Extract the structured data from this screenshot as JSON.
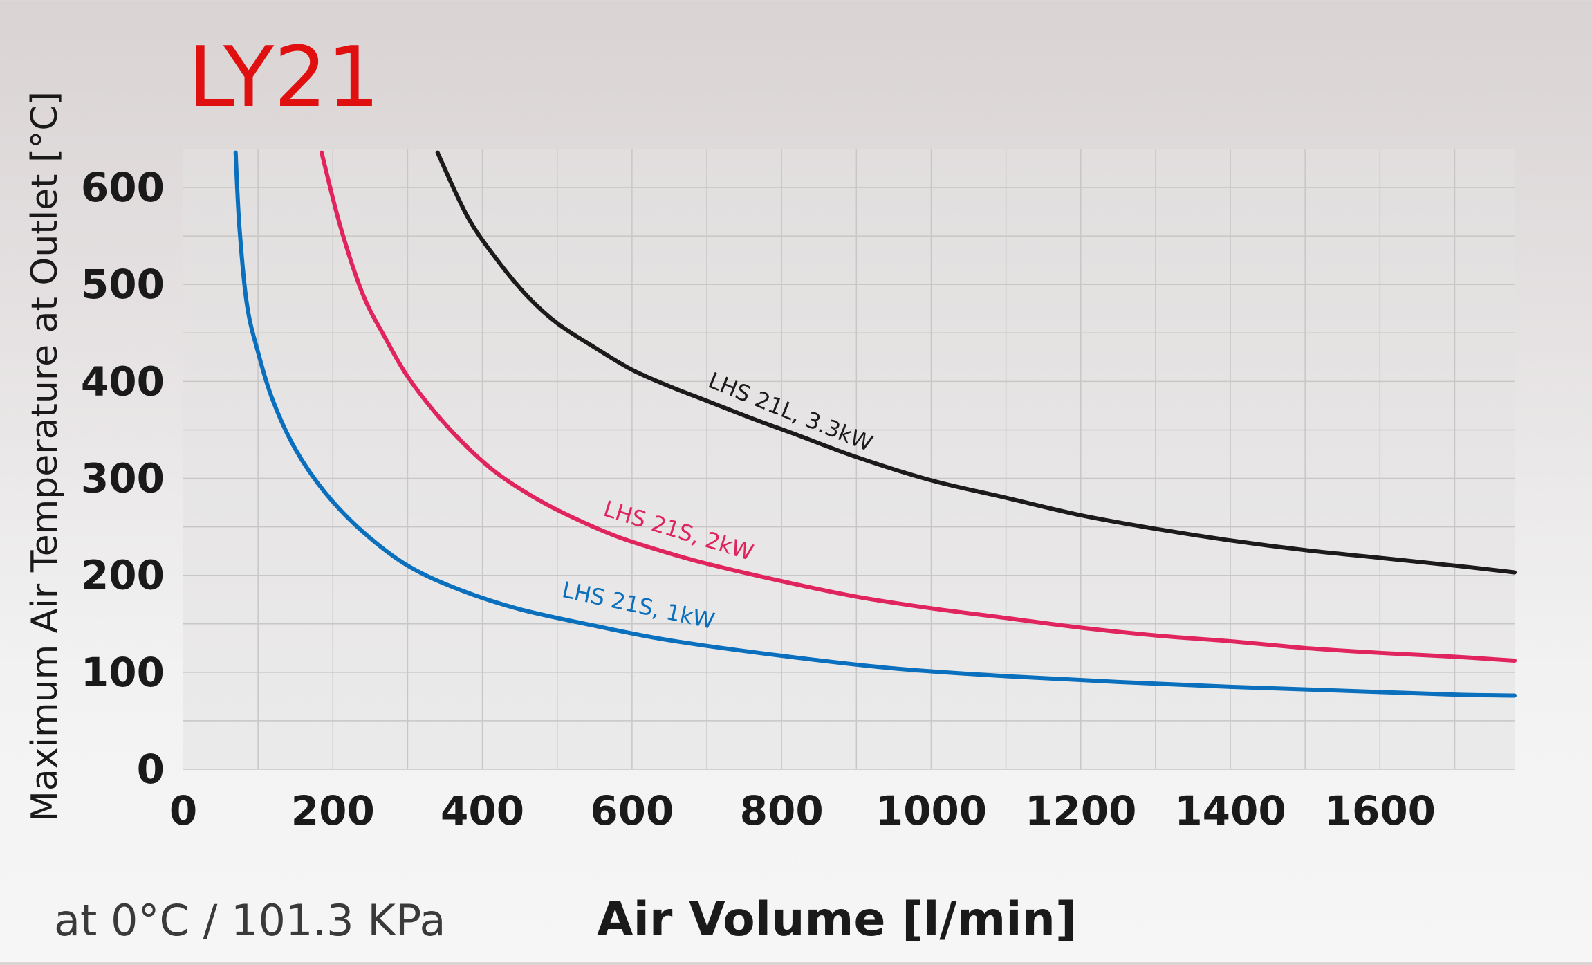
{
  "chart_data": {
    "type": "line",
    "title": "LY21",
    "xlabel": "Air Volume [l/min]",
    "ylabel": "Maximum Air Temperature at Outlet [°C]",
    "note": "at 0°C / 101.3 KPa",
    "xlim": [
      0,
      1780
    ],
    "ylim": [
      0,
      640
    ],
    "xticks": [
      0,
      200,
      400,
      600,
      800,
      1000,
      1200,
      1400,
      1600
    ],
    "yticks": [
      0,
      100,
      200,
      300,
      400,
      500,
      600
    ],
    "grid": true,
    "series": [
      {
        "name": "LHS 21L, 3.3kW",
        "color": "#1c1a1a",
        "x": [
          340,
          380,
          420,
          460,
          500,
          550,
          600,
          650,
          700,
          760,
          820,
          900,
          1000,
          1100,
          1200,
          1300,
          1400,
          1500,
          1600,
          1700,
          1780
        ],
        "y": [
          636,
          570,
          525,
          488,
          460,
          435,
          412,
          395,
          380,
          362,
          345,
          322,
          298,
          280,
          262,
          248,
          236,
          226,
          218,
          210,
          203
        ]
      },
      {
        "name": "LHS 21S, 2kW",
        "color": "#e0245e",
        "x": [
          185,
          210,
          240,
          270,
          300,
          340,
          380,
          420,
          470,
          520,
          580,
          640,
          700,
          800,
          900,
          1000,
          1100,
          1200,
          1300,
          1400,
          1500,
          1600,
          1700,
          1780
        ],
        "y": [
          636,
          560,
          490,
          445,
          405,
          365,
          332,
          305,
          280,
          260,
          240,
          225,
          212,
          194,
          178,
          166,
          156,
          146,
          138,
          132,
          125,
          120,
          116,
          112
        ]
      },
      {
        "name": "LHS 21S, 1kW",
        "color": "#0a6fbc",
        "x": [
          70,
          75,
          85,
          100,
          120,
          150,
          190,
          240,
          300,
          370,
          450,
          550,
          650,
          800,
          950,
          1100,
          1250,
          1400,
          1550,
          1700,
          1780
        ],
        "y": [
          636,
          560,
          480,
          430,
          380,
          330,
          285,
          245,
          210,
          185,
          165,
          148,
          133,
          117,
          104,
          96,
          90,
          85,
          81,
          77,
          76
        ]
      }
    ]
  },
  "colors": {
    "title": "#e01010",
    "axis_text": "#1a1a1a",
    "grid": "#c8c6c6",
    "plot_bg": "#e4e1e2"
  }
}
